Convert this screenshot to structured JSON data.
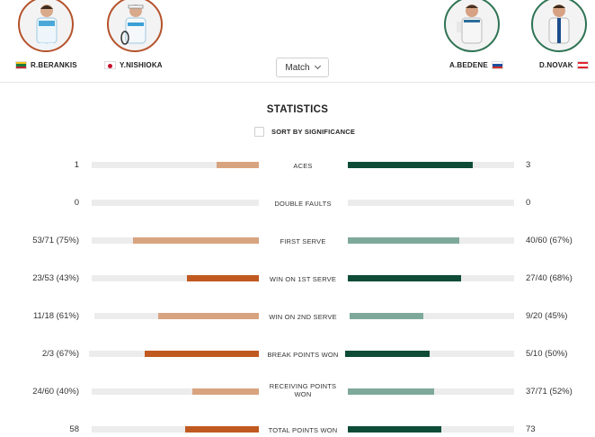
{
  "players": [
    {
      "name": "R.BERANKIS",
      "flag": "lithuania-flag",
      "team": 1
    },
    {
      "name": "Y.NISHIOKA",
      "flag": "japan-flag",
      "team": 1
    },
    {
      "name": "A.BEDENE",
      "flag": "slovenia-flag",
      "team": 2
    },
    {
      "name": "D.NOVAK",
      "flag": "austria-flag",
      "team": 2
    }
  ],
  "match_select": {
    "value": "Match"
  },
  "title": "STATISTICS",
  "sort_label": "SORT BY SIGNIFICANCE",
  "colors": {
    "team1_light": "#d8a480",
    "team1_dark": "#c0591f",
    "team2_light": "#7ea99a",
    "team2_dark": "#0e4c38",
    "track": "#ececec"
  },
  "stats": [
    {
      "label": "ACES",
      "left": "1",
      "right": "3",
      "left_fraction": 0.25,
      "right_fraction": 0.75,
      "winner": "right"
    },
    {
      "label": "DOUBLE FAULTS",
      "left": "0",
      "right": "0",
      "left_fraction": 0,
      "right_fraction": 0,
      "winner": "none"
    },
    {
      "label": "FIRST SERVE",
      "left": "53/71 (75%)",
      "right": "40/60 (67%)",
      "left_fraction": 0.75,
      "right_fraction": 0.67,
      "winner": "none"
    },
    {
      "label": "WIN ON 1ST SERVE",
      "left": "23/53 (43%)",
      "right": "27/40 (68%)",
      "left_fraction": 0.43,
      "right_fraction": 0.68,
      "winner": "both"
    },
    {
      "label": "WIN ON 2ND SERVE",
      "left": "11/18 (61%)",
      "right": "9/20 (45%)",
      "left_fraction": 0.61,
      "right_fraction": 0.45,
      "winner": "none"
    },
    {
      "label": "BREAK POINTS WON",
      "left": "2/3 (67%)",
      "right": "5/10 (50%)",
      "left_fraction": 0.67,
      "right_fraction": 0.5,
      "winner": "both"
    },
    {
      "label": "RECEIVING POINTS WON",
      "left": "24/60 (40%)",
      "right": "37/71 (52%)",
      "left_fraction": 0.4,
      "right_fraction": 0.52,
      "winner": "none"
    },
    {
      "label": "TOTAL POINTS WON",
      "left": "58",
      "right": "73",
      "left_fraction": 0.44,
      "right_fraction": 0.56,
      "winner": "both"
    }
  ]
}
